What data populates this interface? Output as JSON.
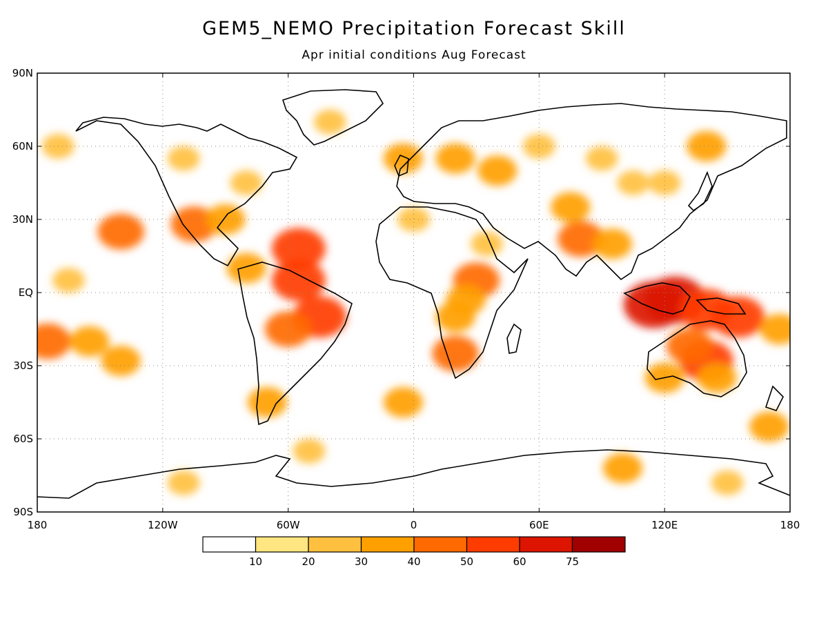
{
  "title": "GEM5_NEMO Precipitation Forecast Skill",
  "subtitle": "Apr initial conditions   Aug Forecast",
  "chart_data": {
    "type": "heatmap",
    "title": "GEM5_NEMO Precipitation Forecast Skill",
    "subtitle": "Apr initial conditions   Aug Forecast",
    "x_range": [
      -180,
      180
    ],
    "y_range": [
      -90,
      90
    ],
    "grid": true,
    "x_ticks": [
      {
        "value": -180,
        "label": "180"
      },
      {
        "value": -120,
        "label": "120W"
      },
      {
        "value": -60,
        "label": "60W"
      },
      {
        "value": 0,
        "label": "0"
      },
      {
        "value": 60,
        "label": "60E"
      },
      {
        "value": 120,
        "label": "120E"
      },
      {
        "value": 180,
        "label": "180"
      }
    ],
    "y_ticks": [
      {
        "value": 90,
        "label": "90N"
      },
      {
        "value": 60,
        "label": "60N"
      },
      {
        "value": 30,
        "label": "30N"
      },
      {
        "value": 0,
        "label": "EQ"
      },
      {
        "value": -30,
        "label": "30S"
      },
      {
        "value": -60,
        "label": "60S"
      },
      {
        "value": -90,
        "label": "90S"
      }
    ],
    "colorbar": {
      "boundaries": [
        "10",
        "20",
        "30",
        "40",
        "50",
        "60",
        "75"
      ],
      "colors": [
        "#ffffff",
        "#ffe680",
        "#ffc040",
        "#ffa000",
        "#ff6a00",
        "#ff3c00",
        "#dc1400",
        "#a00000"
      ]
    },
    "skill_regions": [
      {
        "lon": 115,
        "lat": -5,
        "level": 6
      },
      {
        "lon": 125,
        "lat": -3,
        "level": 6
      },
      {
        "lon": 140,
        "lat": -7,
        "level": 5
      },
      {
        "lon": 155,
        "lat": -10,
        "level": 5
      },
      {
        "lon": 140,
        "lat": -28,
        "level": 5
      },
      {
        "lon": 132,
        "lat": -22,
        "level": 4
      },
      {
        "lon": 145,
        "lat": -35,
        "level": 3
      },
      {
        "lon": 120,
        "lat": -35,
        "level": 3
      },
      {
        "lon": 80,
        "lat": 22,
        "level": 4
      },
      {
        "lon": 95,
        "lat": 20,
        "level": 3
      },
      {
        "lon": 75,
        "lat": 35,
        "level": 3
      },
      {
        "lon": 105,
        "lat": 45,
        "level": 2
      },
      {
        "lon": 120,
        "lat": 45,
        "level": 2
      },
      {
        "lon": 140,
        "lat": 60,
        "level": 3
      },
      {
        "lon": 90,
        "lat": 55,
        "level": 2
      },
      {
        "lon": 60,
        "lat": 60,
        "level": 2
      },
      {
        "lon": 40,
        "lat": 50,
        "level": 3
      },
      {
        "lon": 20,
        "lat": 55,
        "level": 3
      },
      {
        "lon": -5,
        "lat": 55,
        "level": 3
      },
      {
        "lon": 0,
        "lat": 30,
        "level": 2
      },
      {
        "lon": 30,
        "lat": 5,
        "level": 4
      },
      {
        "lon": 20,
        "lat": -10,
        "level": 3
      },
      {
        "lon": 20,
        "lat": -25,
        "level": 4
      },
      {
        "lon": 35,
        "lat": 20,
        "level": 2
      },
      {
        "lon": 25,
        "lat": -3,
        "level": 3
      },
      {
        "lon": -55,
        "lat": 5,
        "level": 5
      },
      {
        "lon": -45,
        "lat": -10,
        "level": 5
      },
      {
        "lon": -60,
        "lat": -15,
        "level": 4
      },
      {
        "lon": -55,
        "lat": 18,
        "level": 5
      },
      {
        "lon": -80,
        "lat": 10,
        "level": 3
      },
      {
        "lon": -70,
        "lat": -45,
        "level": 3
      },
      {
        "lon": -105,
        "lat": 28,
        "level": 4
      },
      {
        "lon": -90,
        "lat": 30,
        "level": 3
      },
      {
        "lon": -110,
        "lat": 55,
        "level": 2
      },
      {
        "lon": -80,
        "lat": 45,
        "level": 2
      },
      {
        "lon": -40,
        "lat": 70,
        "level": 2
      },
      {
        "lon": -170,
        "lat": 60,
        "level": 2
      },
      {
        "lon": -175,
        "lat": -20,
        "level": 4
      },
      {
        "lon": -155,
        "lat": -20,
        "level": 3
      },
      {
        "lon": -140,
        "lat": -28,
        "level": 3
      },
      {
        "lon": -165,
        "lat": 5,
        "level": 2
      },
      {
        "lon": -140,
        "lat": 25,
        "level": 4
      },
      {
        "lon": -5,
        "lat": -45,
        "level": 3
      },
      {
        "lon": -50,
        "lat": -65,
        "level": 2
      },
      {
        "lon": -110,
        "lat": -78,
        "level": 2
      },
      {
        "lon": 100,
        "lat": -72,
        "level": 3
      },
      {
        "lon": 150,
        "lat": -78,
        "level": 2
      },
      {
        "lon": 170,
        "lat": -55,
        "level": 3
      },
      {
        "lon": 175,
        "lat": -15,
        "level": 3
      }
    ]
  }
}
